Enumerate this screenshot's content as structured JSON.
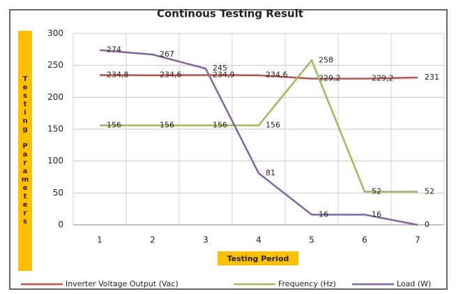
{
  "chart_data": {
    "type": "line",
    "title": "Continous Testing Result",
    "x_label": "Testing Period",
    "y_label": "Testing Parameters",
    "categories": [
      "1",
      "2",
      "3",
      "4",
      "5",
      "6",
      "7"
    ],
    "series": [
      {
        "name": "Inverter Voltage Output (Vac)",
        "color": "#c0504d",
        "values": [
          234.8,
          234.6,
          234.9,
          234.6,
          229.2,
          229.2,
          231
        ],
        "value_labels": [
          "234,8",
          "234,6",
          "234,9",
          "234,6",
          "229,2",
          "229,2",
          "231"
        ]
      },
      {
        "name": "Frequency (Hz)",
        "color": "#9bbb59",
        "values": [
          156,
          156,
          156,
          156,
          258,
          52,
          52
        ]
      },
      {
        "name": "Load (W)",
        "color": "#8064a2",
        "values": [
          274,
          267,
          245,
          81,
          16,
          16,
          0
        ]
      }
    ],
    "ylim": [
      0,
      300
    ],
    "yticks": [
      0,
      50,
      100,
      150,
      200,
      250,
      300
    ],
    "grid": true,
    "legend": "bottom"
  }
}
